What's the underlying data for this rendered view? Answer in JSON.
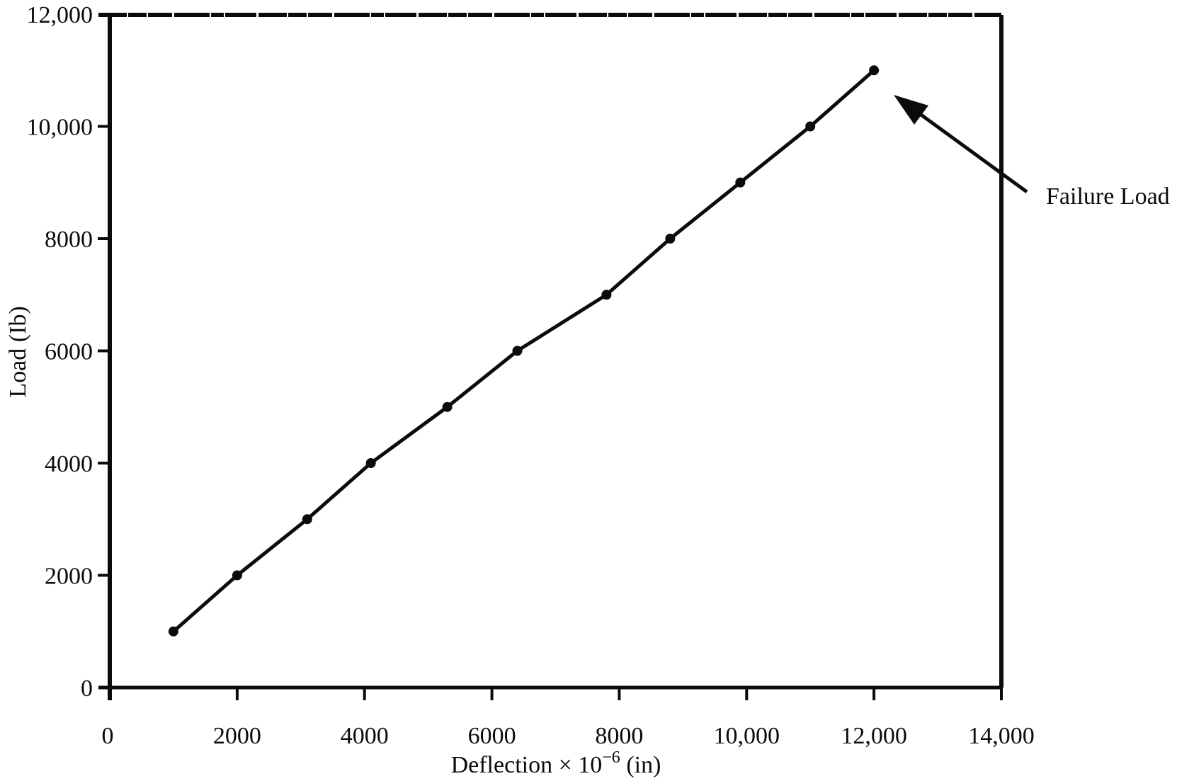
{
  "chart_data": {
    "type": "line",
    "title": "",
    "xlabel": "Deflection × 10⁻⁶ (in)",
    "xlabel_parts": {
      "prefix": "Deflection × 10",
      "superscript": "−6",
      "suffix": " (in)"
    },
    "ylabel": "Load (Ib)",
    "xlim": [
      0,
      14000
    ],
    "ylim": [
      0,
      12000
    ],
    "grid": false,
    "legend": "none",
    "x_tick_values": [
      0,
      2000,
      4000,
      6000,
      8000,
      10000,
      12000,
      14000
    ],
    "x_tick_labels": [
      "0",
      "2000",
      "4000",
      "6000",
      "8000",
      "10,000",
      "12,000",
      "14,000"
    ],
    "y_tick_values": [
      0,
      2000,
      4000,
      6000,
      8000,
      10000,
      12000
    ],
    "y_tick_labels_top_down": [
      "12,000",
      "10,000",
      "8000",
      "6000",
      "4000",
      "2000",
      "0"
    ],
    "series": [
      {
        "name": "load-deflection curve",
        "marker": "filled-circle",
        "color": "#0b0b0b",
        "points": [
          {
            "deflection": 1000,
            "load": 1000
          },
          {
            "deflection": 2000,
            "load": 2000
          },
          {
            "deflection": 3100,
            "load": 3000
          },
          {
            "deflection": 4100,
            "load": 4000
          },
          {
            "deflection": 5300,
            "load": 5000
          },
          {
            "deflection": 6400,
            "load": 6000
          },
          {
            "deflection": 7800,
            "load": 7000
          },
          {
            "deflection": 8800,
            "load": 8000
          },
          {
            "deflection": 9900,
            "load": 9000
          },
          {
            "deflection": 11000,
            "load": 10000
          },
          {
            "deflection": 12000,
            "load": 11000
          }
        ]
      }
    ],
    "annotation": {
      "label": "Failure Load",
      "target_point": {
        "deflection": 12000,
        "load": 11000
      }
    }
  },
  "colors": {
    "ink": "#0b0b0b",
    "background": "#ffffff"
  }
}
